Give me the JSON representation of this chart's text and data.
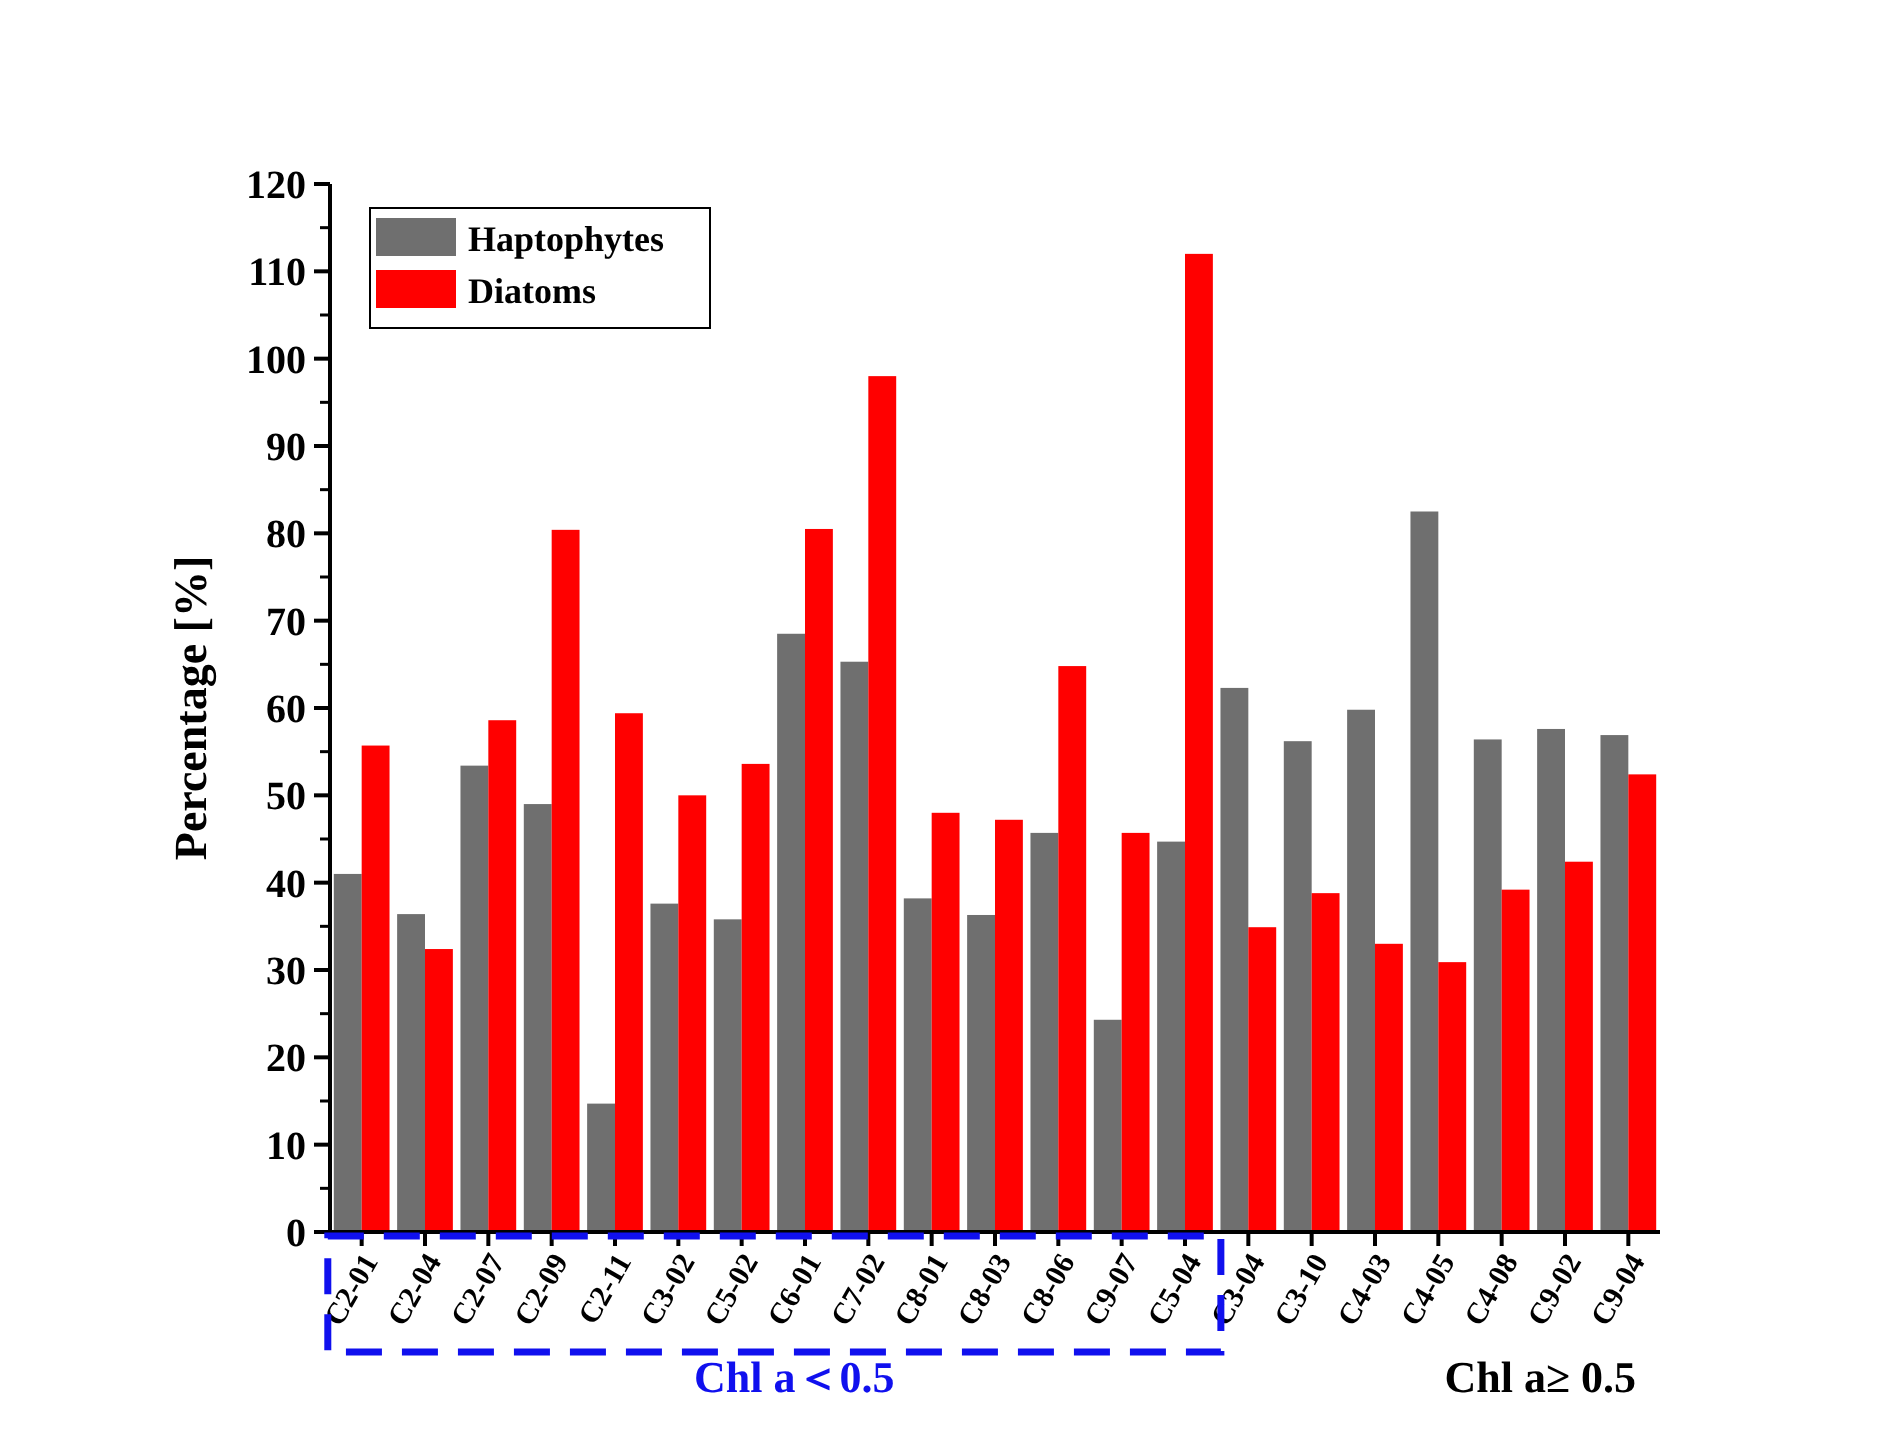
{
  "chart_data": {
    "type": "bar",
    "ylabel": "Percentage [%]",
    "categories": [
      "C2-01",
      "C2-04",
      "C2-07",
      "C2-09",
      "C2-11",
      "C3-02",
      "C5-02",
      "C6-01",
      "C7-02",
      "C8-01",
      "C8-03",
      "C8-06",
      "C9-07",
      "C5-04",
      "C3-04",
      "C3-10",
      "C4-03",
      "C4-05",
      "C4-08",
      "C9-02",
      "C9-04"
    ],
    "series": [
      {
        "name": "Haptophytes",
        "color": "#6f6f6f",
        "values": [
          41,
          36.4,
          53.4,
          49,
          14.7,
          37.6,
          35.8,
          68.5,
          65.3,
          38.2,
          36.3,
          45.7,
          24.3,
          44.7,
          62.3,
          56.2,
          59.8,
          82.5,
          56.4,
          57.6,
          56.9
        ]
      },
      {
        "name": "Diatoms",
        "color": "#ff0000",
        "values": [
          55.7,
          32.4,
          58.6,
          80.4,
          59.4,
          50,
          53.6,
          80.5,
          98,
          48,
          47.2,
          64.8,
          45.7,
          112,
          34.9,
          38.8,
          33,
          30.9,
          39.2,
          42.4,
          52.4
        ]
      }
    ],
    "ylim": [
      0,
      120
    ],
    "yticks": [
      0,
      10,
      20,
      30,
      40,
      50,
      60,
      70,
      80,
      90,
      100,
      110,
      120
    ],
    "legend": "top left",
    "grid": false,
    "annotations": [
      "Chl a＜0.5",
      "Chl a≥ 0.5"
    ]
  }
}
